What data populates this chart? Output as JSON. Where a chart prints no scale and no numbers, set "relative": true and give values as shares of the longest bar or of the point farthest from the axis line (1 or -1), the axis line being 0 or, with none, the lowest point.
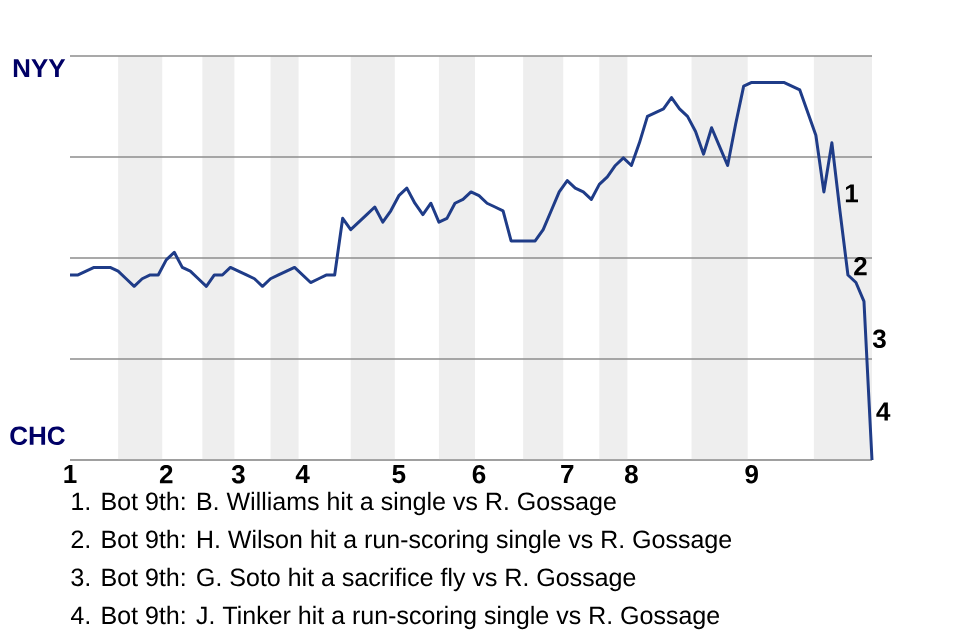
{
  "chart_data": {
    "type": "line",
    "categories": [
      "1",
      null,
      null,
      null,
      null,
      null,
      null,
      null,
      null,
      null,
      null,
      null,
      "2",
      null,
      null,
      null,
      null,
      null,
      null,
      null,
      null,
      "3",
      null,
      null,
      null,
      null,
      null,
      null,
      null,
      "4",
      null,
      null,
      null,
      null,
      null,
      null,
      null,
      null,
      null,
      null,
      null,
      "5",
      null,
      null,
      null,
      null,
      null,
      null,
      null,
      null,
      null,
      "6",
      null,
      null,
      null,
      null,
      null,
      null,
      null,
      null,
      null,
      null,
      "7",
      null,
      null,
      null,
      null,
      null,
      null,
      null,
      "8",
      null,
      null,
      null,
      null,
      null,
      null,
      null,
      null,
      null,
      null,
      null,
      null,
      null,
      null,
      "9",
      null,
      null,
      null,
      null,
      null,
      null,
      null,
      null,
      null,
      null,
      null,
      null,
      null,
      null,
      null
    ],
    "relative": true,
    "series": [
      {
        "color": "#1f3c88",
        "values": [
          0.49,
          0.49,
          0.5,
          0.51,
          0.51,
          0.51,
          0.5,
          0.48,
          0.46,
          0.48,
          0.49,
          0.49,
          0.53,
          0.55,
          0.51,
          0.5,
          0.48,
          0.46,
          0.49,
          0.49,
          0.51,
          0.5,
          0.49,
          0.48,
          0.46,
          0.48,
          0.49,
          0.5,
          0.51,
          0.49,
          0.47,
          0.48,
          0.49,
          0.49,
          0.64,
          0.61,
          0.63,
          0.65,
          0.67,
          0.63,
          0.66,
          0.7,
          0.72,
          0.68,
          0.65,
          0.68,
          0.63,
          0.64,
          0.68,
          0.69,
          0.71,
          0.7,
          0.68,
          0.67,
          0.66,
          0.58,
          0.58,
          0.58,
          0.58,
          0.61,
          0.66,
          0.71,
          0.74,
          0.72,
          0.71,
          0.69,
          0.73,
          0.75,
          0.78,
          0.8,
          0.78,
          0.84,
          0.91,
          0.92,
          0.93,
          0.96,
          0.93,
          0.91,
          0.87,
          0.81,
          0.88,
          0.83,
          0.78,
          0.89,
          0.99,
          1,
          1,
          1,
          1,
          1,
          0.99,
          0.98,
          0.92,
          0.86,
          0.71,
          0.84,
          0.66,
          0.49,
          0.47,
          0.42,
          0
        ]
      }
    ],
    "grid": "y",
    "annotations": [
      "NYY",
      "CHC",
      "1",
      "2",
      "3",
      "4",
      "1. Bot 9th: B. Williams hit a single vs R. Gossage",
      "2. Bot 9th: H. Wilson hit a run-scoring single vs R. Gossage",
      "3. Bot 9th: G. Soto hit a sacrifice fly vs R. Gossage",
      "4. Bot 9th: J. Tinker hit a run-scoring single vs R. Gossage"
    ]
  }
}
